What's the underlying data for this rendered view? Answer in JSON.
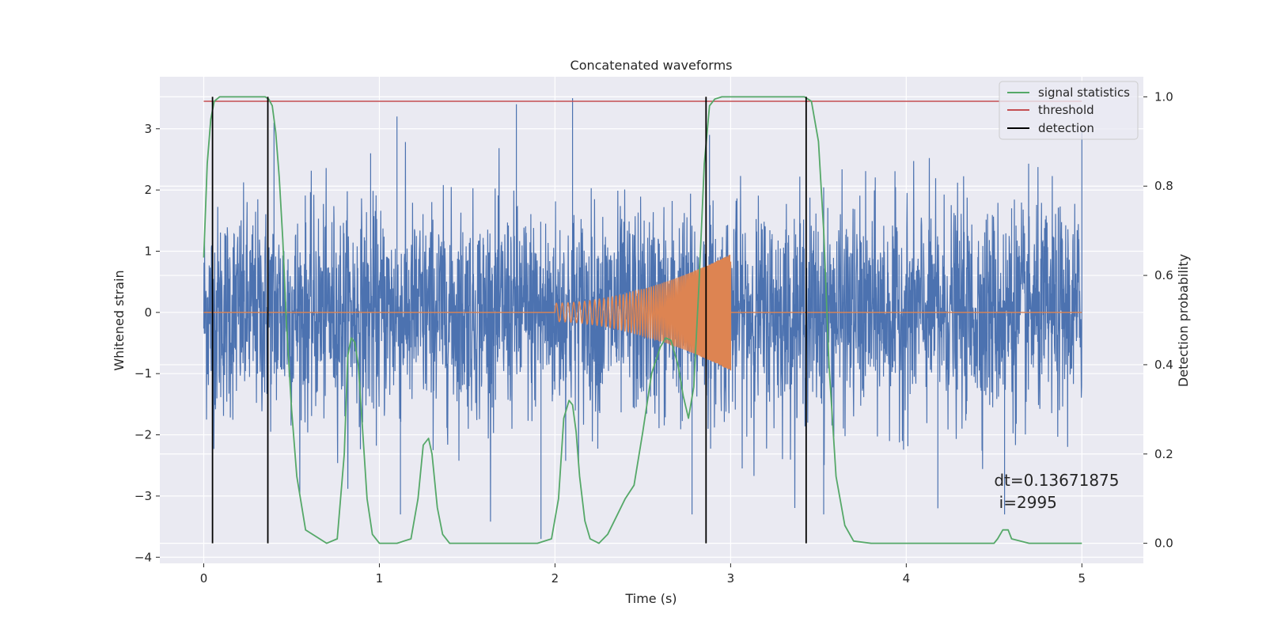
{
  "chart_data": {
    "type": "line",
    "title": "Concatenated waveforms",
    "xlabel": "Time (s)",
    "ylabel_left": "Whitened strain",
    "ylabel_right": "Detection probability",
    "xlim": [
      -0.25,
      5.35
    ],
    "ylim_left": [
      -4.1,
      3.85
    ],
    "ylim_right": [
      -0.045,
      1.045
    ],
    "xticks": [
      0,
      1,
      2,
      3,
      4,
      5
    ],
    "yticks_left": [
      -4,
      -3,
      -2,
      -1,
      0,
      1,
      2,
      3
    ],
    "yticks_right": [
      0.0,
      0.2,
      0.4,
      0.6,
      0.8,
      1.0
    ],
    "grid": true,
    "legend_position": "top-right",
    "annotation": {
      "line1": "dt=0.13671875",
      "line2": " i=2995",
      "x": 4.5,
      "y_prob": 0.1
    },
    "series": [
      {
        "name": "",
        "role": "whitened_strain",
        "axis": "left",
        "color": "#4c72b0",
        "x_range": [
          0,
          5
        ],
        "noise_sigma": 0.85,
        "description_points": {
          "spikes": [
            [
              0.4,
              3.1
            ],
            [
              0.95,
              2.6
            ],
            [
              1.1,
              3.2
            ],
            [
              1.78,
              3.4
            ],
            [
              2.1,
              3.5
            ],
            [
              2.88,
              2.9
            ],
            [
              4.6,
              1.7
            ],
            [
              5.0,
              3.0
            ],
            [
              0.05,
              -2.4
            ],
            [
              1.12,
              -3.3
            ],
            [
              1.92,
              -3.7
            ],
            [
              2.78,
              -3.3
            ],
            [
              3.53,
              -3.3
            ],
            [
              4.18,
              -3.2
            ],
            [
              4.56,
              -3.3
            ]
          ]
        }
      },
      {
        "name": "",
        "role": "injected_chirp",
        "axis": "left",
        "color": "#dd8452",
        "x_range": [
          0,
          5
        ],
        "chirp": {
          "t_start": 2.0,
          "t_end": 3.0,
          "amp_start": 0.15,
          "amp_end": 0.95
        }
      },
      {
        "name": "signal statistics",
        "axis": "right",
        "color": "#55a868",
        "x": [
          0.0,
          0.02,
          0.04,
          0.06,
          0.09,
          0.12,
          0.2,
          0.3,
          0.35,
          0.37,
          0.39,
          0.41,
          0.43,
          0.45,
          0.47,
          0.5,
          0.53,
          0.58,
          0.7,
          0.76,
          0.8,
          0.82,
          0.84,
          0.86,
          0.88,
          0.9,
          0.93,
          0.96,
          1.0,
          1.1,
          1.18,
          1.22,
          1.25,
          1.28,
          1.3,
          1.33,
          1.36,
          1.4,
          1.5,
          1.9,
          1.98,
          2.02,
          2.05,
          2.08,
          2.1,
          2.12,
          2.14,
          2.17,
          2.2,
          2.25,
          2.3,
          2.35,
          2.4,
          2.45,
          2.5,
          2.55,
          2.6,
          2.63,
          2.66,
          2.7,
          2.73,
          2.76,
          2.79,
          2.82,
          2.85,
          2.88,
          2.91,
          2.95,
          3.0,
          3.1,
          3.3,
          3.42,
          3.46,
          3.5,
          3.53,
          3.56,
          3.6,
          3.65,
          3.7,
          3.8,
          4.0,
          4.5,
          4.52,
          4.55,
          4.58,
          4.6,
          4.7,
          5.0
        ],
        "y": [
          0.64,
          0.85,
          0.95,
          0.99,
          1.0,
          1.0,
          1.0,
          1.0,
          1.0,
          0.995,
          0.98,
          0.92,
          0.82,
          0.68,
          0.5,
          0.3,
          0.15,
          0.03,
          0.0,
          0.01,
          0.2,
          0.42,
          0.46,
          0.45,
          0.4,
          0.28,
          0.1,
          0.02,
          0.0,
          0.0,
          0.01,
          0.1,
          0.22,
          0.235,
          0.2,
          0.08,
          0.02,
          0.0,
          0.0,
          0.0,
          0.01,
          0.1,
          0.28,
          0.32,
          0.31,
          0.25,
          0.15,
          0.05,
          0.01,
          0.0,
          0.02,
          0.06,
          0.1,
          0.13,
          0.25,
          0.38,
          0.44,
          0.46,
          0.455,
          0.4,
          0.33,
          0.28,
          0.35,
          0.58,
          0.85,
          0.98,
          0.995,
          1.0,
          1.0,
          1.0,
          1.0,
          1.0,
          0.99,
          0.9,
          0.7,
          0.4,
          0.15,
          0.04,
          0.005,
          0.0,
          0.0,
          0.0,
          0.01,
          0.03,
          0.03,
          0.01,
          0.0,
          0.0
        ]
      },
      {
        "name": "threshold",
        "axis": "right",
        "color": "#c44e52",
        "x": [
          0,
          5
        ],
        "y": [
          0.99,
          0.99
        ]
      },
      {
        "name": "detection",
        "axis": "right",
        "color": "#000000",
        "vlines": [
          0.05,
          0.365,
          2.86,
          3.43
        ],
        "y_range": [
          0,
          1
        ]
      }
    ]
  }
}
